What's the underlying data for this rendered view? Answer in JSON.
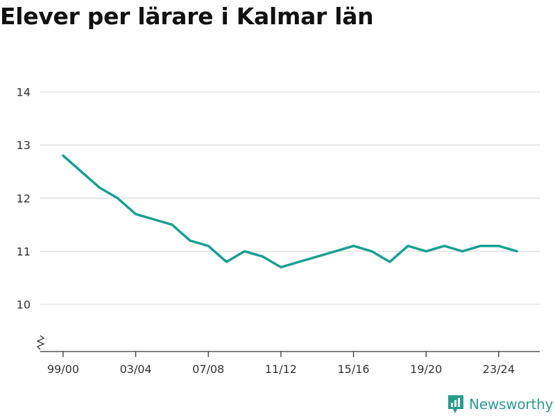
{
  "chart_data": {
    "type": "line",
    "title": "Elever per lärare i Kalmar län",
    "xlabel": "",
    "ylabel": "",
    "x": [
      "99/00",
      "00/01",
      "01/02",
      "02/03",
      "03/04",
      "04/05",
      "05/06",
      "06/07",
      "07/08",
      "08/09",
      "09/10",
      "10/11",
      "11/12",
      "12/13",
      "13/14",
      "14/15",
      "15/16",
      "16/17",
      "17/18",
      "18/19",
      "19/20",
      "20/21",
      "21/22",
      "22/23",
      "23/24",
      "24/25"
    ],
    "x_tick_labels": [
      "99/00",
      "03/04",
      "07/08",
      "11/12",
      "15/16",
      "19/20",
      "23/24"
    ],
    "y_ticks": [
      10,
      11,
      12,
      13,
      14
    ],
    "ylim": [
      9.3,
      14
    ],
    "grid": true,
    "axis_break": true,
    "series": [
      {
        "color": "#17a092",
        "values": [
          12.8,
          12.5,
          12.2,
          12.0,
          11.7,
          11.6,
          11.5,
          11.2,
          11.1,
          10.8,
          11.0,
          10.9,
          10.7,
          10.8,
          10.9,
          11.0,
          11.1,
          11.0,
          10.8,
          11.1,
          11.0,
          11.1,
          11.0,
          11.1,
          11.1,
          11.0
        ]
      }
    ]
  },
  "brand": {
    "name": "Newsworthy",
    "color": "#2a9d8f",
    "icon": "bar-chart-icon"
  }
}
